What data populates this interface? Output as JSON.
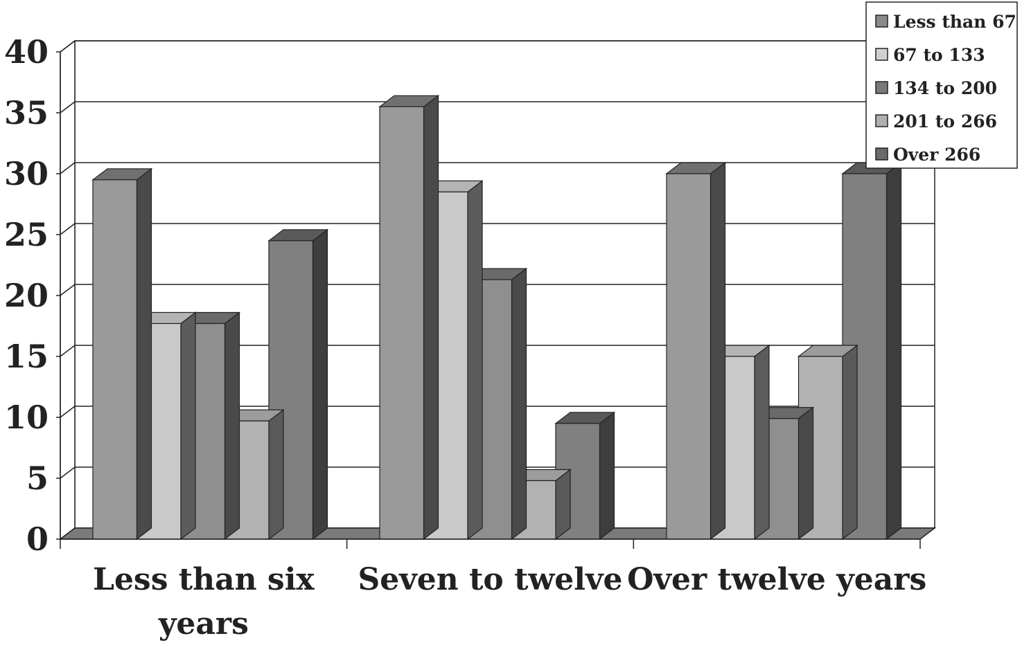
{
  "chart_data": {
    "type": "bar",
    "title": "",
    "xlabel": "",
    "ylabel": "",
    "ylim": [
      0,
      40
    ],
    "yticks": [
      "0",
      "5",
      "10",
      "15",
      "20",
      "25",
      "30",
      "35",
      "40"
    ],
    "categories": [
      [
        "Less than six",
        "years"
      ],
      [
        "Seven to twelve"
      ],
      [
        "Over twelve years"
      ]
    ],
    "series": [
      {
        "name": "Less than 67",
        "values": [
          29.5,
          35.5,
          30
        ]
      },
      {
        "name": "67 to 133",
        "values": [
          17.7,
          28.5,
          15
        ]
      },
      {
        "name": "134 to 200",
        "values": [
          17.7,
          21.3,
          9.9
        ]
      },
      {
        "name": "201 to 266",
        "values": [
          9.7,
          4.8,
          15
        ]
      },
      {
        "name": "Over 266",
        "values": [
          24.5,
          9.5,
          30
        ]
      }
    ],
    "colors": {
      "front": [
        "#9a9a9a",
        "#c9c9c9",
        "#8f8f8f",
        "#b2b2b2",
        "#808080"
      ],
      "side": [
        "#4a4a4a",
        "#5c5c5c",
        "#4a4a4a",
        "#5a5a5a",
        "#3e3e3e"
      ],
      "top": [
        "#707070",
        "#b4b4b4",
        "#6a6a6a",
        "#9c9c9c",
        "#5a5a5a"
      ],
      "legend_swatch": [
        "#8a8a8a",
        "#d0d0d0",
        "#7a7a7a",
        "#b0b0b0",
        "#6a6a6a"
      ]
    },
    "grid": true,
    "legend_position": "top-right"
  }
}
